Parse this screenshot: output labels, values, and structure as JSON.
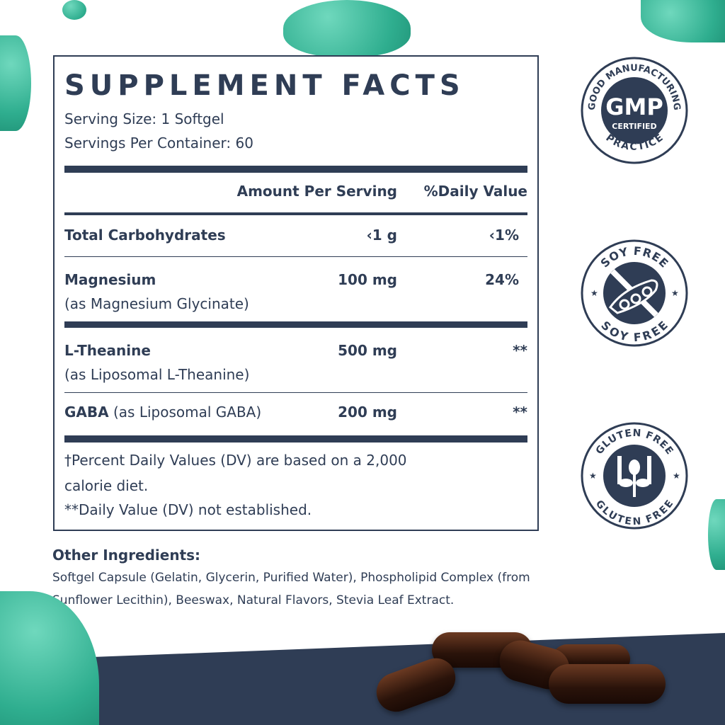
{
  "title": "SUPPLEMENT FACTS",
  "serving_size": "Serving Size: 1 Softgel",
  "servings_per_container": "Servings Per Container: 60",
  "headers": {
    "amount": "Amount Per Serving",
    "dv": "%Daily Value"
  },
  "rows": [
    {
      "name": "Total Carbohydrates",
      "sub": "",
      "amount": "‹1 g",
      "dv": "‹1%"
    },
    {
      "name": "Magnesium",
      "sub": "(as Magnesium Glycinate)",
      "amount": "100 mg",
      "dv": "24%"
    },
    {
      "name": "L-Theanine",
      "sub": "(as Liposomal L-Theanine)",
      "amount": "500 mg",
      "dv": "**"
    },
    {
      "name": "GABA",
      "sub": "(as Liposomal GABA)",
      "amount": "200 mg",
      "dv": "**"
    }
  ],
  "footnotes": [
    "†Percent Daily Values (DV) are based on a 2,000",
    "calorie diet.",
    "**Daily Value (DV) not established."
  ],
  "other_ingredients": {
    "heading": "Other Ingredients:",
    "text": "Softgel Capsule (Gelatin, Glycerin, Purified Water), Phospholipid Complex (from Sunflower Lecithin), Beeswax, Natural Flavors, Stevia Leaf Extract."
  },
  "badges": {
    "gmp": {
      "top": "GOOD MANUFACTURING",
      "main": "GMP",
      "sub": "CERTIFIED",
      "bottom": "PRACTICE",
      "icon": "gmp-seal"
    },
    "soy": {
      "top": "SOY FREE",
      "bottom": "SOY FREE",
      "icon": "soybean-crossed-icon"
    },
    "gluten": {
      "top": "GLUTEN FREE",
      "bottom": "GLUTEN FREE",
      "icon": "wheat-hands-icon"
    }
  },
  "colors": {
    "navy": "#2f3d55",
    "teal": "#2fae8f"
  }
}
